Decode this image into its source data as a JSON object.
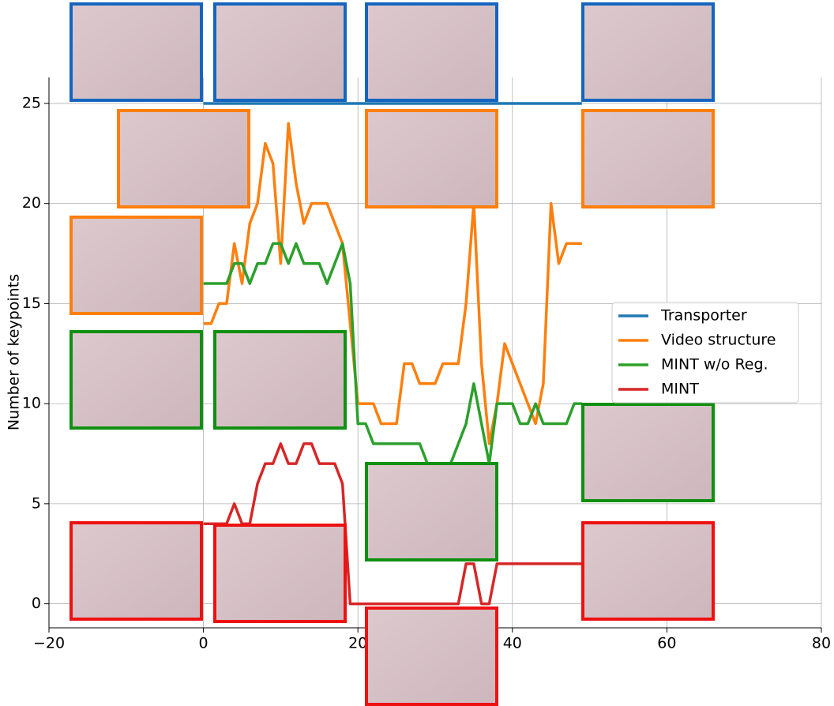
{
  "chart_data": {
    "type": "line",
    "ylabel": "Number of keypoints",
    "x": [
      0,
      1,
      2,
      3,
      4,
      5,
      6,
      7,
      8,
      9,
      10,
      11,
      12,
      13,
      14,
      15,
      16,
      17,
      18,
      19,
      20,
      21,
      22,
      23,
      24,
      25,
      26,
      27,
      28,
      29,
      30,
      31,
      32,
      33,
      34,
      35,
      36,
      37,
      38,
      39,
      40,
      41,
      42,
      43,
      44,
      45,
      46,
      47,
      48,
      49
    ],
    "series": [
      {
        "name": "Transporter",
        "color": "#1f77b4",
        "values": [
          25,
          25,
          25,
          25,
          25,
          25,
          25,
          25,
          25,
          25,
          25,
          25,
          25,
          25,
          25,
          25,
          25,
          25,
          25,
          25,
          25,
          25,
          25,
          25,
          25,
          25,
          25,
          25,
          25,
          25,
          25,
          25,
          25,
          25,
          25,
          25,
          25,
          25,
          25,
          25,
          25,
          25,
          25,
          25,
          25,
          25,
          25,
          25,
          25,
          25
        ]
      },
      {
        "name": "Video structure",
        "color": "#ff7f0e",
        "values": [
          14,
          14,
          15,
          15,
          18,
          16,
          19,
          20,
          23,
          22,
          17,
          24,
          21,
          19,
          20,
          20,
          20,
          19,
          18,
          14,
          10,
          10,
          10,
          9,
          9,
          9,
          12,
          12,
          11,
          11,
          11,
          12,
          12,
          12,
          15,
          20,
          12,
          8,
          10,
          13,
          12,
          11,
          10,
          9,
          11,
          20,
          17,
          18,
          18,
          18
        ]
      },
      {
        "name": "MINT w/o Reg.",
        "color": "#2ca02c",
        "values": [
          16,
          16,
          16,
          16,
          17,
          17,
          16,
          17,
          17,
          18,
          18,
          17,
          18,
          17,
          17,
          17,
          16,
          17,
          18,
          16,
          9,
          9,
          8,
          8,
          8,
          8,
          8,
          8,
          8,
          7,
          7,
          7,
          7,
          8,
          9,
          11,
          9,
          7,
          10,
          10,
          10,
          9,
          9,
          10,
          9,
          9,
          9,
          9,
          10,
          10
        ]
      },
      {
        "name": "MINT",
        "color": "#d62728",
        "values": [
          4,
          4,
          4,
          4,
          5,
          4,
          4,
          6,
          7,
          7,
          8,
          7,
          7,
          8,
          8,
          7,
          7,
          7,
          6,
          0,
          0,
          0,
          0,
          0,
          0,
          0,
          0,
          0,
          0,
          0,
          0,
          0,
          0,
          0,
          2,
          2,
          0,
          0,
          2,
          2,
          2,
          2,
          2,
          2,
          2,
          2,
          2,
          2,
          2,
          2
        ]
      }
    ],
    "xlim": [
      -20,
      80
    ],
    "ylim": [
      -1.2,
      26.3
    ],
    "xticks": [
      {
        "value": -20,
        "label": "−20"
      },
      0,
      20,
      40,
      60,
      80
    ],
    "yticks": [
      0,
      5,
      10,
      15,
      20,
      25
    ],
    "grid": true,
    "legend": "right"
  }
}
